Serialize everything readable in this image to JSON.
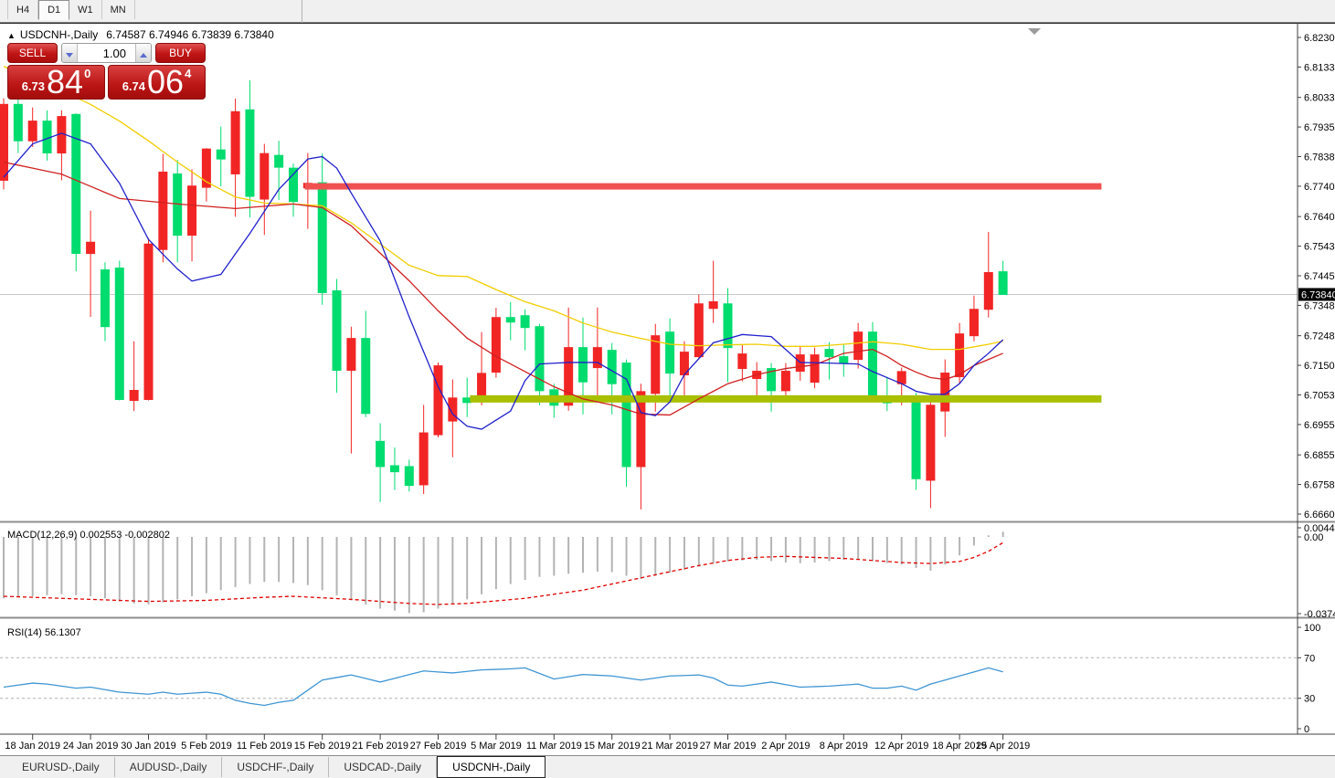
{
  "window": {
    "top_tabs": [
      "H4",
      "D1",
      "W1",
      "MN"
    ],
    "active_top_tab": "D1"
  },
  "chart_title": {
    "symbol": "USDCNH-,Daily",
    "ohlc_text": "6.74587 6.74946 6.73839 6.73840",
    "expand_icon": "▲"
  },
  "trade_panel": {
    "sell_label": "SELL",
    "buy_label": "BUY",
    "volume": "1.00",
    "sell_price_small": "6.73",
    "sell_price_big": "84",
    "sell_price_sup": "0",
    "buy_price_small": "6.74",
    "buy_price_big": "06",
    "buy_price_sup": "4"
  },
  "indicators": {
    "macd_label": "MACD(12,26,9) 0.002553 -0.002802",
    "rsi_label": "RSI(14) 56.1307"
  },
  "bottom_tabs": [
    "EURUSD-,Daily",
    "AUDUSD-,Daily",
    "USDCHF-,Daily",
    "USDCAD-,Daily",
    "USDCNH-,Daily"
  ],
  "active_bottom_tab": "USDCNH-,Daily",
  "colors": {
    "bull": "#f22525",
    "bear": "#00dc6e",
    "ma_fast": "#2020cc",
    "ma_mid": "#d02020",
    "ma_slow": "#f2cd00",
    "resistance": "#f05050",
    "support": "#a8c000",
    "macd_hist": "#b4b4b4",
    "macd_signal": "#e00000",
    "rsi_line": "#3f95d4",
    "bid_line": "#c8c8c8",
    "bid_label_bg": "#000000"
  },
  "price_axis": {
    "labels": [
      "6.82305",
      "6.81330",
      "6.80330",
      "6.79355",
      "6.78380",
      "6.77405",
      "6.76405",
      "6.75430",
      "6.74455",
      "6.73480",
      "6.72480",
      "6.71505",
      "6.70530",
      "6.69555",
      "6.68555",
      "6.67580",
      "6.66605"
    ],
    "values": [
      6.82305,
      6.8133,
      6.8033,
      6.79355,
      6.7838,
      6.77405,
      6.76405,
      6.7543,
      6.74455,
      6.7348,
      6.7248,
      6.71505,
      6.7053,
      6.69555,
      6.68555,
      6.6758,
      6.66605
    ],
    "bid_label": "6.73840",
    "bid_value": 6.7384
  },
  "macd_axis": {
    "labels": [
      "0.004459",
      "0.00",
      "-0.037475"
    ],
    "values": [
      0.004459,
      0.0,
      -0.037475
    ]
  },
  "rsi_axis": {
    "labels": [
      "100",
      "70",
      "30",
      "0"
    ],
    "values": [
      100,
      70,
      30,
      0
    ]
  },
  "chart_data": {
    "type": "candlestick",
    "symbol": "USDCNH",
    "timeframe": "Daily",
    "title": "USDCNH-,Daily",
    "ylim": [
      6.66605,
      6.82305
    ],
    "last_ohlc": {
      "open": 6.74587,
      "high": 6.74946,
      "low": 6.73839,
      "close": 6.7384
    },
    "date_ticks": [
      {
        "label": "18 Jan 2019",
        "index": 2
      },
      {
        "label": "24 Jan 2019",
        "index": 6
      },
      {
        "label": "30 Jan 2019",
        "index": 10
      },
      {
        "label": "5 Feb 2019",
        "index": 14
      },
      {
        "label": "11 Feb 2019",
        "index": 18
      },
      {
        "label": "15 Feb 2019",
        "index": 22
      },
      {
        "label": "21 Feb 2019",
        "index": 26
      },
      {
        "label": "27 Feb 2019",
        "index": 30
      },
      {
        "label": "5 Mar 2019",
        "index": 34
      },
      {
        "label": "11 Mar 2019",
        "index": 38
      },
      {
        "label": "15 Mar 2019",
        "index": 42
      },
      {
        "label": "21 Mar 2019",
        "index": 46
      },
      {
        "label": "27 Mar 2019",
        "index": 50
      },
      {
        "label": "2 Apr 2019",
        "index": 54
      },
      {
        "label": "8 Apr 2019",
        "index": 58
      },
      {
        "label": "12 Apr 2019",
        "index": 62
      },
      {
        "label": "18 Apr 2019",
        "index": 66
      },
      {
        "label": "25 Apr 2019",
        "index": 69
      }
    ],
    "candles": [
      [
        6.776,
        6.803,
        6.773,
        6.801
      ],
      [
        6.801,
        6.803,
        6.785,
        6.789
      ],
      [
        6.789,
        6.8,
        6.787,
        6.7955
      ],
      [
        6.7955,
        6.799,
        6.7825,
        6.785
      ],
      [
        6.785,
        6.799,
        6.776,
        6.797
      ],
      [
        6.7977,
        6.798,
        6.746,
        6.7519
      ],
      [
        6.7519,
        6.766,
        6.731,
        6.7556
      ],
      [
        6.7465,
        6.749,
        6.723,
        6.7278
      ],
      [
        6.7471,
        6.7495,
        6.7035,
        6.7038
      ],
      [
        6.7035,
        6.723,
        6.7,
        6.7068
      ],
      [
        6.7038,
        6.757,
        6.7035,
        6.755
      ],
      [
        6.7532,
        6.7847,
        6.749,
        6.7787
      ],
      [
        6.7781,
        6.7827,
        6.749,
        6.7579
      ],
      [
        6.7579,
        6.7796,
        6.7493,
        6.7741
      ],
      [
        6.7737,
        6.7866,
        6.769,
        6.7863
      ],
      [
        6.786,
        6.7937,
        6.774,
        6.783
      ],
      [
        6.7781,
        6.8029,
        6.764,
        6.7986
      ],
      [
        6.7992,
        6.8089,
        6.7638,
        6.7707
      ],
      [
        6.7698,
        6.788,
        6.758,
        6.7848
      ],
      [
        6.7842,
        6.789,
        6.7695,
        6.7803
      ],
      [
        6.78,
        6.7815,
        6.764,
        6.769
      ],
      [
        6.7735,
        6.785,
        6.76,
        6.775
      ],
      [
        6.7752,
        6.7848,
        6.735,
        6.739
      ],
      [
        6.7396,
        6.7435,
        6.706,
        6.7134
      ],
      [
        6.7134,
        6.7278,
        6.686,
        6.7239
      ],
      [
        6.7239,
        6.733,
        6.698,
        6.6992
      ],
      [
        6.69,
        6.696,
        6.67,
        6.6817
      ],
      [
        6.682,
        6.688,
        6.674,
        6.68
      ],
      [
        6.6817,
        6.684,
        6.6735,
        6.6755
      ],
      [
        6.6757,
        6.702,
        6.6727,
        6.6928
      ],
      [
        6.6922,
        6.716,
        6.6913,
        6.7149
      ],
      [
        6.6967,
        6.7104,
        6.6848,
        6.7043
      ],
      [
        6.7043,
        6.711,
        6.698,
        6.7028
      ],
      [
        6.7034,
        6.726,
        6.7019,
        6.7124
      ],
      [
        6.7128,
        6.734,
        6.711,
        6.7308
      ],
      [
        6.7308,
        6.7359,
        6.7233,
        6.7293
      ],
      [
        6.7314,
        6.7335,
        6.72,
        6.7275
      ],
      [
        6.7278,
        6.7287,
        6.7019,
        6.7067
      ],
      [
        6.707,
        6.709,
        6.6978,
        6.7019
      ],
      [
        6.7019,
        6.7341,
        6.7001,
        6.7209
      ],
      [
        6.7209,
        6.7308,
        6.6989,
        6.7096
      ],
      [
        6.7143,
        6.7341,
        6.7049,
        6.7209
      ],
      [
        6.72,
        6.7224,
        6.6989,
        6.709
      ],
      [
        6.7158,
        6.717,
        6.675,
        6.6817
      ],
      [
        6.6817,
        6.709,
        6.6676,
        6.7064
      ],
      [
        6.7058,
        6.7287,
        6.6998,
        6.7248
      ],
      [
        6.726,
        6.7305,
        6.7043,
        6.7125
      ],
      [
        6.7119,
        6.723,
        6.7049,
        6.7194
      ],
      [
        6.7179,
        6.7384,
        6.717,
        6.7353
      ],
      [
        6.7338,
        6.7495,
        6.729,
        6.736
      ],
      [
        6.7353,
        6.7405,
        6.7095,
        6.7209
      ],
      [
        6.714,
        6.7218,
        6.7098,
        6.7188
      ],
      [
        6.7107,
        6.7161,
        6.7043,
        6.7131
      ],
      [
        6.714,
        6.7158,
        6.6998,
        6.7067
      ],
      [
        6.7067,
        6.7158,
        6.704,
        6.7131
      ],
      [
        6.7131,
        6.7215,
        6.71,
        6.7185
      ],
      [
        6.7095,
        6.7209,
        6.7075,
        6.7185
      ],
      [
        6.7203,
        6.7227,
        6.7104,
        6.7179
      ],
      [
        6.7179,
        6.7221,
        6.7113,
        6.7158
      ],
      [
        6.717,
        6.729,
        6.714,
        6.726
      ],
      [
        6.726,
        6.7293,
        6.7037,
        6.7049
      ],
      [
        6.7042,
        6.7113,
        6.7,
        6.7027
      ],
      [
        6.709,
        6.7143,
        6.7019,
        6.713
      ],
      [
        6.7036,
        6.706,
        6.674,
        6.6777
      ],
      [
        6.6772,
        6.704,
        6.668,
        6.7019
      ],
      [
        6.7,
        6.717,
        6.6915,
        6.7125
      ],
      [
        6.7113,
        6.729,
        6.709,
        6.7254
      ],
      [
        6.7248,
        6.738,
        6.723,
        6.7335
      ],
      [
        6.7335,
        6.759,
        6.7308,
        6.7456
      ],
      [
        6.74587,
        6.74946,
        6.73839,
        6.7384
      ]
    ],
    "ma_fast_blue_anchors": [
      [
        0,
        6.777
      ],
      [
        2,
        6.788
      ],
      [
        4,
        6.7915
      ],
      [
        6,
        6.788
      ],
      [
        8,
        6.775
      ],
      [
        10,
        6.7565
      ],
      [
        12,
        6.7468
      ],
      [
        13,
        6.7428
      ],
      [
        15,
        6.745
      ],
      [
        17,
        6.7585
      ],
      [
        19,
        6.773
      ],
      [
        21,
        6.783
      ],
      [
        22,
        6.7838
      ],
      [
        23,
        6.78
      ],
      [
        24,
        6.7718
      ],
      [
        26,
        6.756
      ],
      [
        28,
        6.731
      ],
      [
        30,
        6.708
      ],
      [
        31,
        6.699
      ],
      [
        32,
        6.695
      ],
      [
        33,
        6.694
      ],
      [
        35,
        6.7
      ],
      [
        36,
        6.71
      ],
      [
        37,
        6.7155
      ],
      [
        39,
        6.716
      ],
      [
        41,
        6.716
      ],
      [
        43,
        6.7105
      ],
      [
        44,
        6.6995
      ],
      [
        45,
        6.6985
      ],
      [
        46,
        6.703
      ],
      [
        47,
        6.712
      ],
      [
        49,
        6.7225
      ],
      [
        51,
        6.7252
      ],
      [
        53,
        6.7245
      ],
      [
        55,
        6.716
      ],
      [
        57,
        6.7158
      ],
      [
        59,
        6.7155
      ],
      [
        60,
        6.713
      ],
      [
        62,
        6.709
      ],
      [
        63,
        6.7065
      ],
      [
        64,
        6.7055
      ],
      [
        65,
        6.7055
      ],
      [
        66,
        6.709
      ],
      [
        67,
        6.715
      ],
      [
        68,
        6.719
      ],
      [
        69,
        6.7235
      ]
    ],
    "ma_mid_red_anchors": [
      [
        0,
        6.782
      ],
      [
        4,
        6.778
      ],
      [
        8,
        6.77
      ],
      [
        12,
        6.7682
      ],
      [
        16,
        6.7667
      ],
      [
        20,
        6.7682
      ],
      [
        22,
        6.767
      ],
      [
        24,
        6.761
      ],
      [
        26,
        6.752
      ],
      [
        28,
        6.7429
      ],
      [
        30,
        6.733
      ],
      [
        32,
        6.724
      ],
      [
        34,
        6.718
      ],
      [
        36,
        6.713
      ],
      [
        38,
        6.708
      ],
      [
        40,
        6.704
      ],
      [
        42,
        6.702
      ],
      [
        44,
        6.699
      ],
      [
        46,
        6.6987
      ],
      [
        48,
        6.704
      ],
      [
        50,
        6.709
      ],
      [
        52,
        6.712
      ],
      [
        54,
        6.714
      ],
      [
        56,
        6.7152
      ],
      [
        58,
        6.719
      ],
      [
        60,
        6.7203
      ],
      [
        61,
        6.718
      ],
      [
        62,
        6.715
      ],
      [
        63,
        6.7128
      ],
      [
        64,
        6.711
      ],
      [
        65,
        6.7104
      ],
      [
        66,
        6.712
      ],
      [
        67,
        6.715
      ],
      [
        68,
        6.717
      ],
      [
        69,
        6.719
      ]
    ],
    "ma_slow_yellow_anchors": [
      [
        0,
        6.8135
      ],
      [
        2,
        6.8095
      ],
      [
        4,
        6.8055
      ],
      [
        6,
        6.801
      ],
      [
        8,
        6.7955
      ],
      [
        10,
        6.789
      ],
      [
        12,
        6.782
      ],
      [
        14,
        6.7755
      ],
      [
        16,
        6.7705
      ],
      [
        18,
        6.7685
      ],
      [
        20,
        6.7682
      ],
      [
        22,
        6.7676
      ],
      [
        24,
        6.762
      ],
      [
        26,
        6.755
      ],
      [
        28,
        6.748
      ],
      [
        30,
        6.7446
      ],
      [
        32,
        6.7443
      ],
      [
        34,
        6.74
      ],
      [
        36,
        6.736
      ],
      [
        38,
        6.733
      ],
      [
        40,
        6.729
      ],
      [
        42,
        6.726
      ],
      [
        44,
        6.7239
      ],
      [
        46,
        6.722
      ],
      [
        48,
        6.7215
      ],
      [
        50,
        6.7218
      ],
      [
        52,
        6.722
      ],
      [
        54,
        6.7213
      ],
      [
        56,
        6.7213
      ],
      [
        58,
        6.722
      ],
      [
        60,
        6.7228
      ],
      [
        62,
        6.722
      ],
      [
        64,
        6.7203
      ],
      [
        66,
        6.7203
      ],
      [
        68,
        6.722
      ],
      [
        69,
        6.723
      ]
    ],
    "levels": {
      "resistance": {
        "price": 6.774,
        "from_index": 20.8,
        "to_index": 75.8,
        "thickness": 7
      },
      "support": {
        "price": 6.704,
        "from_index": 32.2,
        "to_index": 75.8,
        "thickness": 8
      }
    },
    "macd": {
      "params": "12,26,9",
      "current_macd": 0.002553,
      "current_signal": -0.002802,
      "histogram": [
        -0.03,
        -0.0295,
        -0.029,
        -0.0285,
        -0.028,
        -0.0285,
        -0.029,
        -0.03,
        -0.0315,
        -0.0325,
        -0.033,
        -0.032,
        -0.0305,
        -0.029,
        -0.0275,
        -0.026,
        -0.0245,
        -0.023,
        -0.022,
        -0.022,
        -0.0225,
        -0.0235,
        -0.026,
        -0.0285,
        -0.031,
        -0.033,
        -0.035,
        -0.036,
        -0.0372,
        -0.0368,
        -0.035,
        -0.033,
        -0.0305,
        -0.028,
        -0.0255,
        -0.023,
        -0.021,
        -0.0195,
        -0.019,
        -0.018,
        -0.0175,
        -0.017,
        -0.0172,
        -0.019,
        -0.0205,
        -0.019,
        -0.0175,
        -0.016,
        -0.0145,
        -0.013,
        -0.012,
        -0.0115,
        -0.0112,
        -0.0118,
        -0.0125,
        -0.0128,
        -0.0125,
        -0.0118,
        -0.0112,
        -0.011,
        -0.0118,
        -0.0128,
        -0.0135,
        -0.0152,
        -0.0165,
        -0.0135,
        -0.009,
        -0.0042,
        0.0008,
        0.002553
      ],
      "signal_anchors": [
        [
          0,
          -0.029
        ],
        [
          4,
          -0.03
        ],
        [
          8,
          -0.031
        ],
        [
          10,
          -0.0315
        ],
        [
          14,
          -0.031
        ],
        [
          18,
          -0.0295
        ],
        [
          20,
          -0.029
        ],
        [
          24,
          -0.0305
        ],
        [
          28,
          -0.0325
        ],
        [
          30,
          -0.033
        ],
        [
          32,
          -0.0325
        ],
        [
          36,
          -0.03
        ],
        [
          40,
          -0.026
        ],
        [
          44,
          -0.02
        ],
        [
          48,
          -0.014
        ],
        [
          50,
          -0.0115
        ],
        [
          52,
          -0.01
        ],
        [
          54,
          -0.0095
        ],
        [
          56,
          -0.01
        ],
        [
          58,
          -0.0105
        ],
        [
          60,
          -0.0115
        ],
        [
          62,
          -0.0125
        ],
        [
          64,
          -0.013
        ],
        [
          66,
          -0.012
        ],
        [
          67,
          -0.01
        ],
        [
          68,
          -0.007
        ],
        [
          69,
          -0.0028
        ]
      ]
    },
    "rsi": {
      "period": 14,
      "current": 56.1307,
      "levels": [
        70,
        30
      ],
      "anchors": [
        [
          0,
          41
        ],
        [
          1,
          43
        ],
        [
          2,
          45
        ],
        [
          3,
          44
        ],
        [
          5,
          40
        ],
        [
          6,
          41
        ],
        [
          8,
          36
        ],
        [
          10,
          34
        ],
        [
          11,
          36
        ],
        [
          12,
          34
        ],
        [
          14,
          36
        ],
        [
          15,
          34
        ],
        [
          16,
          28
        ],
        [
          17,
          25
        ],
        [
          18,
          23
        ],
        [
          19,
          26
        ],
        [
          20,
          28
        ],
        [
          22,
          48
        ],
        [
          24,
          53
        ],
        [
          26,
          46
        ],
        [
          29,
          57
        ],
        [
          31,
          55
        ],
        [
          33,
          58
        ],
        [
          35,
          59
        ],
        [
          36,
          60
        ],
        [
          38,
          49
        ],
        [
          40,
          53.5
        ],
        [
          42,
          52
        ],
        [
          44,
          48
        ],
        [
          46,
          52
        ],
        [
          48,
          53
        ],
        [
          49,
          50
        ],
        [
          50,
          43
        ],
        [
          51,
          42
        ],
        [
          53,
          46
        ],
        [
          55,
          41
        ],
        [
          57,
          42
        ],
        [
          59,
          44
        ],
        [
          60,
          40
        ],
        [
          61,
          40
        ],
        [
          62,
          42
        ],
        [
          63,
          38
        ],
        [
          64,
          44
        ],
        [
          65,
          48
        ],
        [
          66,
          52
        ],
        [
          67,
          56
        ],
        [
          68,
          60
        ],
        [
          69,
          56.13
        ]
      ]
    }
  }
}
